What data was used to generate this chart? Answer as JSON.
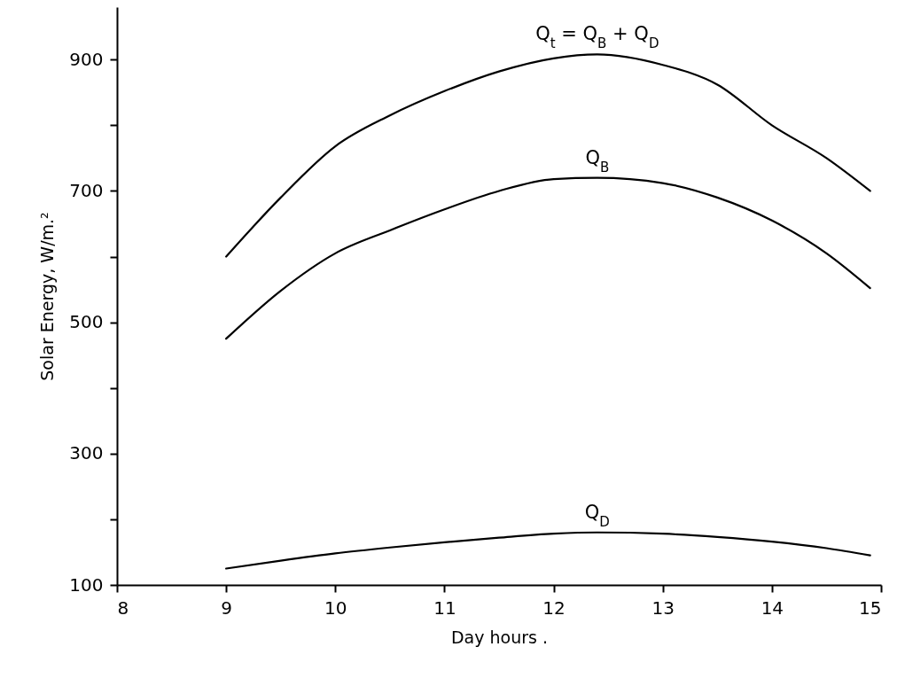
{
  "chart_data": {
    "type": "line",
    "xlabel": "Day   hours .",
    "ylabel": "Solar Energy,  W/m.²",
    "x": [
      9,
      9.5,
      10,
      10.5,
      11,
      11.5,
      12,
      12.4,
      13,
      13.5,
      14,
      14.5,
      14.9
    ],
    "series": [
      {
        "name": "Q$_{t}$ =  Q$_{B}$ + Q$_{D}$",
        "color": "#000000",
        "values": [
          600,
          690,
          768,
          815,
          852,
          882,
          902,
          908,
          892,
          862,
          800,
          750,
          700
        ]
      },
      {
        "name": "Q$_{B}$",
        "color": "#000000",
        "values": [
          475,
          548,
          605,
          640,
          672,
          700,
          718,
          720,
          712,
          690,
          655,
          605,
          552
        ]
      },
      {
        "name": "Q$_{D}$",
        "color": "#000000",
        "values": [
          125,
          137,
          148,
          157,
          165,
          172,
          178,
          180,
          178,
          173,
          166,
          156,
          145
        ]
      }
    ],
    "xlim": [
      8,
      15
    ],
    "xticks": [
      8,
      9,
      10,
      11,
      12,
      13,
      14,
      15
    ],
    "ylim": [
      100,
      980
    ],
    "yticks": [
      100,
      {
        "value": 200,
        "label": null
      },
      300,
      {
        "value": 400,
        "label": null
      },
      500,
      {
        "value": 600,
        "label": null
      },
      700,
      {
        "value": 800,
        "label": null
      },
      900
    ],
    "marker": "none",
    "line_style": "solid"
  }
}
